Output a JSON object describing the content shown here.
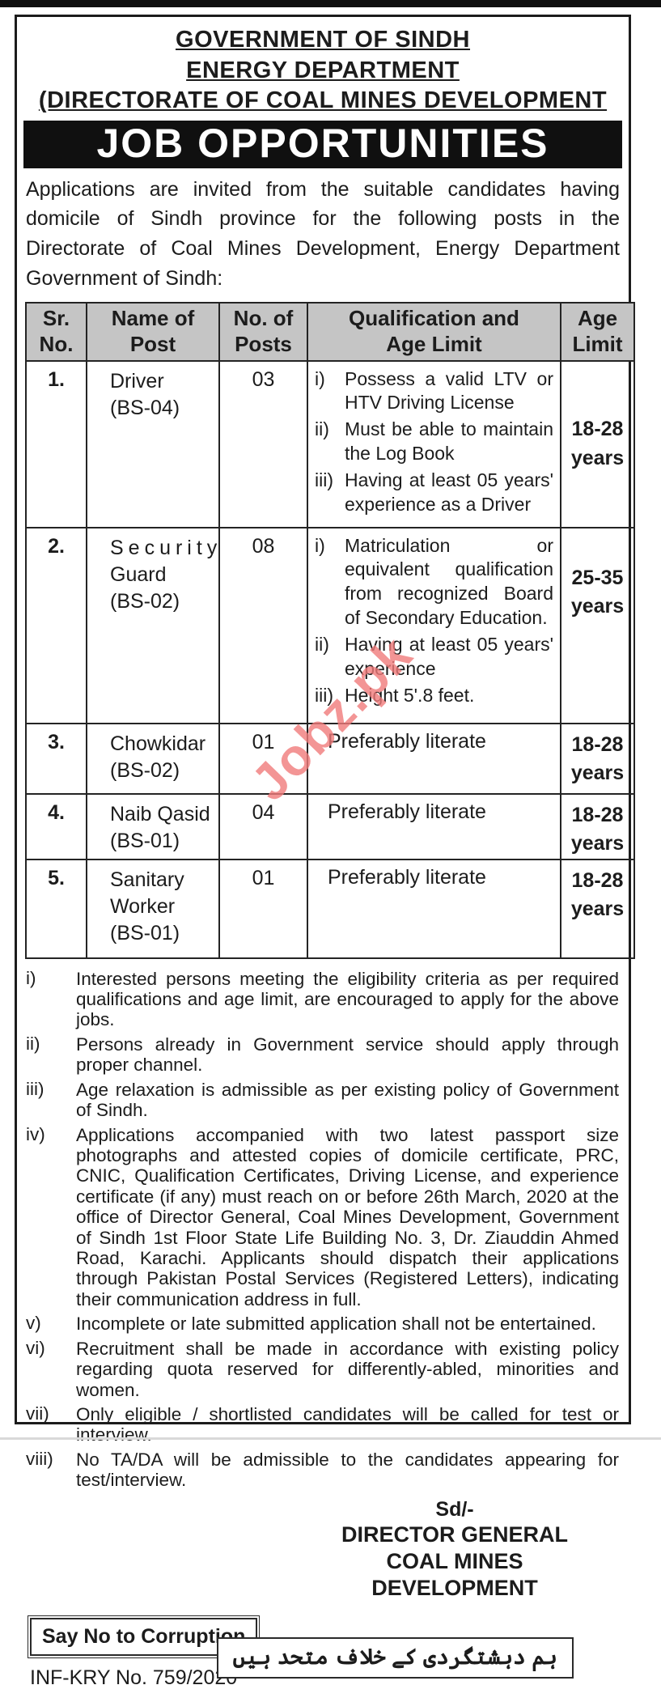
{
  "header": {
    "title_lines": [
      "GOVERNMENT OF SINDH",
      "ENERGY DEPARTMENT",
      "(DIRECTORATE OF COAL MINES DEVELOPMENT"
    ],
    "banner": "JOB OPPORTUNITIES"
  },
  "intro": "Applications are invited from the suitable candidates having domicile of Sindh province for the following posts in the Directorate of Coal Mines Development, Energy Department Government of Sindh:",
  "table": {
    "headers": [
      "Sr.\nNo.",
      "Name of\nPost",
      "No. of\nPosts",
      "Qualification and\nAge Limit",
      "Age\nLimit"
    ],
    "rows": [
      {
        "sr": "1.",
        "post_lines": [
          "Driver",
          "(BS-04)"
        ],
        "count": "03",
        "quals": [
          {
            "n": "i)",
            "t": "Possess a valid LTV or HTV Driving License"
          },
          {
            "n": "ii)",
            "t": "Must be able to maintain the Log Book"
          },
          {
            "n": "iii)",
            "t": "Having at least 05 years' experience as a Driver"
          }
        ],
        "age": "18-28\nyears"
      },
      {
        "sr": "2.",
        "post_lines": [
          "Security",
          "Guard",
          "(BS-02)"
        ],
        "count": "08",
        "quals": [
          {
            "n": "i)",
            "t": "Matriculation or equivalent qualification from recognized Board of Secondary Education."
          },
          {
            "n": "ii)",
            "t": "Having at least 05 years' experience"
          },
          {
            "n": "iii)",
            "t": "Height 5'.8 feet."
          }
        ],
        "age": "25-35\nyears"
      },
      {
        "sr": "3.",
        "post_lines": [
          "Chowkidar",
          "(BS-02)"
        ],
        "count": "01",
        "qual_text": "Preferably literate",
        "age": "18-28\nyears"
      },
      {
        "sr": "4.",
        "post_lines": [
          "Naib Qasid",
          "(BS-01)"
        ],
        "count": "04",
        "qual_text": "Preferably literate",
        "age": "18-28\nyears"
      },
      {
        "sr": "5.",
        "post_lines": [
          "Sanitary",
          "Worker",
          "(BS-01)"
        ],
        "count": "01",
        "qual_text": "Preferably literate",
        "age": "18-28\nyears"
      }
    ]
  },
  "notes": [
    {
      "num": "i)",
      "text": "Interested persons meeting the eligibility criteria as per required qualifications and age limit, are encouraged to apply for the above jobs."
    },
    {
      "num": "ii)",
      "text": "Persons already in Government service should apply through proper channel."
    },
    {
      "num": "iii)",
      "text": "Age relaxation is admissible as per existing policy of Government of Sindh."
    },
    {
      "num": "iv)",
      "text": "Applications accompanied with two latest passport size photographs and attested copies of domicile certificate, PRC, CNIC, Qualification Certificates, Driving License, and experience certificate (if any) must reach on or before 26th March, 2020 at the office of Director General, Coal Mines Development, Government of Sindh 1st Floor State Life Building No. 3, Dr. Ziauddin Ahmed Road, Karachi. Applicants should dispatch their applications through Pakistan Postal Services (Registered Letters), indicating their communication address in full."
    },
    {
      "num": "v)",
      "text": "Incomplete or late submitted application shall not be entertained."
    },
    {
      "num": "vi)",
      "text": "Recruitment shall be made in accordance with existing policy regarding quota reserved for differently-abled, minorities and women."
    },
    {
      "num": "vii)",
      "text": "Only eligible / shortlisted candidates will be called for test or interview."
    },
    {
      "num": "viii)",
      "text": "No TA/DA will be admissible to the candidates appearing for test/interview."
    }
  ],
  "signature": {
    "sd": "Sd/-",
    "line1": "DIRECTOR GENERAL",
    "line2": "COAL MINES DEVELOPMENT"
  },
  "footer": {
    "slogan": "Say No to Corruption",
    "reference": "INF-KRY No. 759/2020",
    "urdu_slogan": "ہم دہشتگردی کے خلاف متحد ہیں"
  },
  "watermark": "Jobz.pk",
  "colors": {
    "banner_bg": "#101010",
    "table_header_bg": "#c5c5c5",
    "watermark_pink": "#f07a7a"
  }
}
